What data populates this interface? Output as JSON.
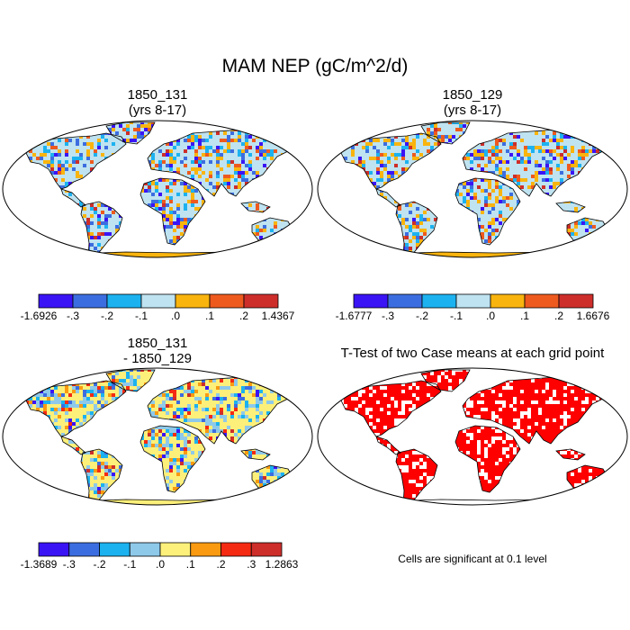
{
  "main_title": "MAM NEP (gC/m^2/d)",
  "panels": {
    "top_left": {
      "title_line1": "1850_131",
      "title_line2": "(yrs 8-17)"
    },
    "top_right": {
      "title_line1": "1850_129",
      "title_line2": "(yrs 8-17)"
    },
    "bottom_left": {
      "title_line1": "1850_131",
      "title_line2": "- 1850_129"
    },
    "bottom_right": {
      "title": "T-Test of two Case means at each grid point"
    }
  },
  "colorbars": {
    "top_left": {
      "colors": [
        "#3a14f5",
        "#3c6de0",
        "#1cb2f0",
        "#bfe3f0",
        "#f9b40e",
        "#ee5a1e",
        "#cd2e2a"
      ],
      "labels": [
        "-1.6926",
        "-.3",
        "-.2",
        "-.1",
        ".0",
        ".1",
        ".2",
        "1.4367"
      ]
    },
    "top_right": {
      "colors": [
        "#3a14f5",
        "#3c6de0",
        "#1cb2f0",
        "#bfe3f0",
        "#f9b40e",
        "#ee5a1e",
        "#cd2e2a"
      ],
      "labels": [
        "-1.6777",
        "-.3",
        "-.2",
        "-.1",
        ".0",
        ".1",
        ".2",
        "1.6676"
      ]
    },
    "bottom_left": {
      "colors": [
        "#3a14f5",
        "#3c6de0",
        "#1cb2f0",
        "#8ec9ea",
        "#fdf07a",
        "#f99a10",
        "#f52a12",
        "#cd2e2a"
      ],
      "labels": [
        "-1.3689",
        "-.3",
        "-.2",
        "-.1",
        ".0",
        ".1",
        ".2",
        ".3",
        "1.2863"
      ]
    }
  },
  "significance_note": "Cells are significant at 0.1 level",
  "map_colors": {
    "ocean": "#ffffff",
    "outline": "#000000",
    "significant": "#ff0000",
    "antarctica_top": "#f9b40e",
    "antarctica_diff": "#fdf07a"
  }
}
